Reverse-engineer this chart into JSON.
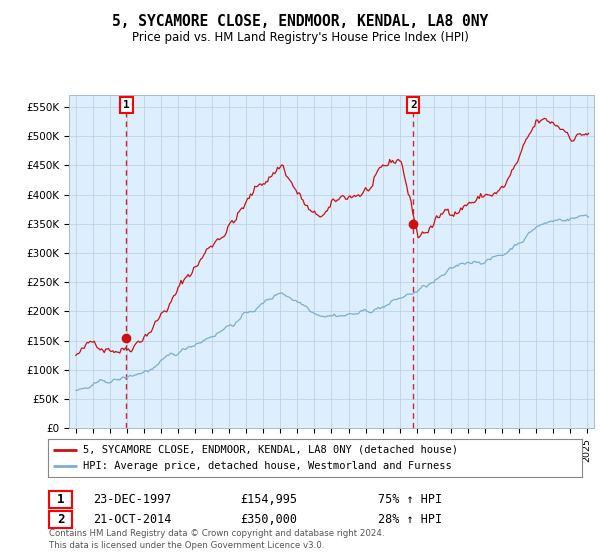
{
  "title": "5, SYCAMORE CLOSE, ENDMOOR, KENDAL, LA8 0NY",
  "subtitle": "Price paid vs. HM Land Registry's House Price Index (HPI)",
  "legend_line1": "5, SYCAMORE CLOSE, ENDMOOR, KENDAL, LA8 0NY (detached house)",
  "legend_line2": "HPI: Average price, detached house, Westmorland and Furness",
  "transaction1_date": "23-DEC-1997",
  "transaction1_price": "£154,995",
  "transaction1_hpi": "75% ↑ HPI",
  "transaction2_date": "21-OCT-2014",
  "transaction2_price": "£350,000",
  "transaction2_hpi": "28% ↑ HPI",
  "footer_line1": "Contains HM Land Registry data © Crown copyright and database right 2024.",
  "footer_line2": "This data is licensed under the Open Government Licence v3.0.",
  "hpi_color": "#7aaed6",
  "price_color": "#cc1111",
  "marker_color": "#cc1111",
  "dashed_color": "#cc1111",
  "plot_bg_color": "#ddeeff",
  "ylim": [
    0,
    570000
  ],
  "yticks": [
    0,
    50000,
    100000,
    150000,
    200000,
    250000,
    300000,
    350000,
    400000,
    450000,
    500000,
    550000
  ],
  "ytick_labels": [
    "£0",
    "£50K",
    "£100K",
    "£150K",
    "£200K",
    "£250K",
    "£300K",
    "£350K",
    "£400K",
    "£450K",
    "£500K",
    "£550K"
  ],
  "transaction1_year": 1997.97,
  "transaction1_value": 154995,
  "transaction2_year": 2014.8,
  "transaction2_value": 350000,
  "background_color": "#ffffff",
  "grid_color": "#bbccdd"
}
